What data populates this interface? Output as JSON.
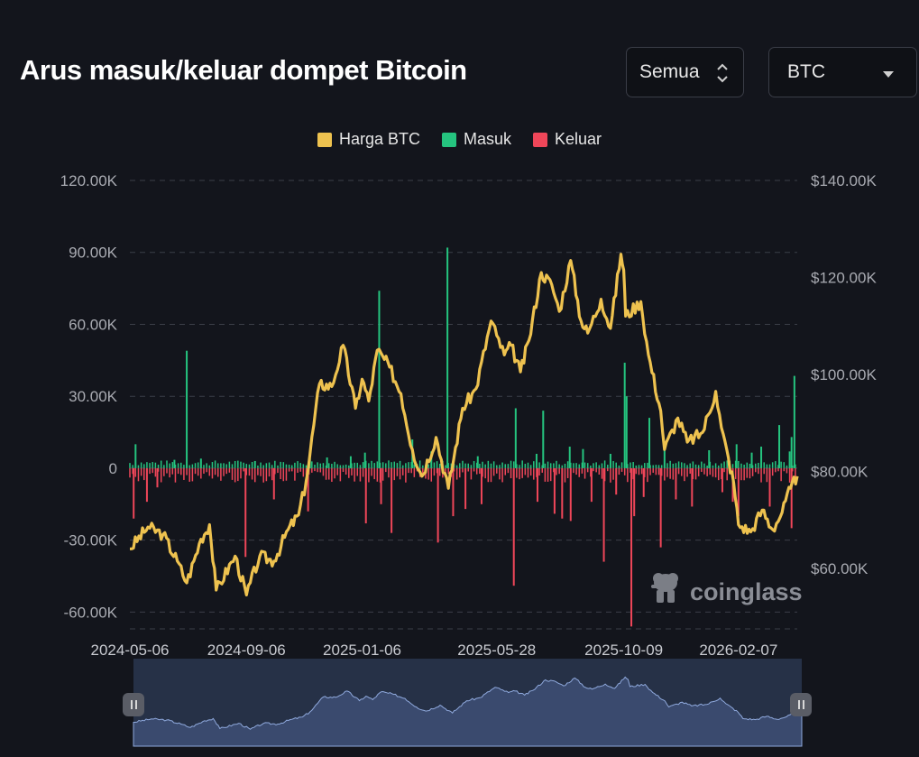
{
  "header": {
    "title": "Arus masuk/keluar dompet Bitcoin",
    "range_select": "Semua",
    "coin_select": "BTC"
  },
  "legend": [
    {
      "label": "Harga BTC",
      "color": "#eec24f"
    },
    {
      "label": "Masuk",
      "color": "#25c47f"
    },
    {
      "label": "Keluar",
      "color": "#ef4659"
    }
  ],
  "watermark": "coinglass",
  "chart_data": {
    "type": "bar",
    "title": "Arus masuk/keluar dompet Bitcoin",
    "x_ticks": [
      "2024-05-06",
      "2024-09-06",
      "2025-01-06",
      "2025-05-28",
      "2025-10-09",
      "2026-02-07"
    ],
    "x_range": [
      "2024-05-06",
      "2026-04-10"
    ],
    "y_left": {
      "ticks": [
        "120.00K",
        "90.00K",
        "60.00K",
        "30.00K",
        "0",
        "-30.00K",
        "-60.00K"
      ],
      "range": [
        -67000,
        120000
      ]
    },
    "y_right": {
      "ticks": [
        "$140.00K",
        "$120.00K",
        "$100.00K",
        "$80.00K",
        "$60.00K"
      ],
      "range": [
        47500,
        140000
      ]
    },
    "grid": true,
    "legend_position": "top-center",
    "series": [
      {
        "name": "Harga BTC",
        "type": "line",
        "axis": "right",
        "points": [
          [
            "2024-05-06",
            64000
          ],
          [
            "2024-05-25",
            68500
          ],
          [
            "2024-06-10",
            67000
          ],
          [
            "2024-06-25",
            61500
          ],
          [
            "2024-07-05",
            57000
          ],
          [
            "2024-07-20",
            66000
          ],
          [
            "2024-07-29",
            69000
          ],
          [
            "2024-08-05",
            55500
          ],
          [
            "2024-08-25",
            62500
          ],
          [
            "2024-09-06",
            54500
          ],
          [
            "2024-09-20",
            62500
          ],
          [
            "2024-10-05",
            61500
          ],
          [
            "2024-10-20",
            68000
          ],
          [
            "2024-10-31",
            71000
          ],
          [
            "2024-11-08",
            78000
          ],
          [
            "2024-11-22",
            98000
          ],
          [
            "2024-12-05",
            97500
          ],
          [
            "2024-12-17",
            106000
          ],
          [
            "2024-12-30",
            93000
          ],
          [
            "2025-01-06",
            99000
          ],
          [
            "2025-01-13",
            94500
          ],
          [
            "2025-01-22",
            105000
          ],
          [
            "2025-02-04",
            101500
          ],
          [
            "2025-02-16",
            96000
          ],
          [
            "2025-02-28",
            84500
          ],
          [
            "2025-03-10",
            79000
          ],
          [
            "2025-03-25",
            87000
          ],
          [
            "2025-04-07",
            76500
          ],
          [
            "2025-04-22",
            93000
          ],
          [
            "2025-05-06",
            97000
          ],
          [
            "2025-05-22",
            111000
          ],
          [
            "2025-05-28",
            108000
          ],
          [
            "2025-06-05",
            104000
          ],
          [
            "2025-06-12",
            106000
          ],
          [
            "2025-06-22",
            100500
          ],
          [
            "2025-07-01",
            107000
          ],
          [
            "2025-07-14",
            121000
          ],
          [
            "2025-07-25",
            118500
          ],
          [
            "2025-08-02",
            113000
          ],
          [
            "2025-08-14",
            123500
          ],
          [
            "2025-08-25",
            111000
          ],
          [
            "2025-09-01",
            108500
          ],
          [
            "2025-09-15",
            115500
          ],
          [
            "2025-09-25",
            109500
          ],
          [
            "2025-10-06",
            124800
          ],
          [
            "2025-10-09",
            121500
          ],
          [
            "2025-10-11",
            112000
          ],
          [
            "2025-10-27",
            115000
          ],
          [
            "2025-11-04",
            104000
          ],
          [
            "2025-11-17",
            92500
          ],
          [
            "2025-11-21",
            84500
          ],
          [
            "2025-12-05",
            91000
          ],
          [
            "2025-12-15",
            86000
          ],
          [
            "2025-12-31",
            88000
          ],
          [
            "2026-01-14",
            96500
          ],
          [
            "2026-01-20",
            89000
          ],
          [
            "2026-02-02",
            77500
          ],
          [
            "2026-02-07",
            69000
          ],
          [
            "2026-02-20",
            67500
          ],
          [
            "2026-03-04",
            72000
          ],
          [
            "2026-03-15",
            68000
          ],
          [
            "2026-03-25",
            71500
          ],
          [
            "2026-04-03",
            76500
          ],
          [
            "2026-04-10",
            79000
          ]
        ]
      },
      {
        "name": "Masuk",
        "type": "bar",
        "axis": "left",
        "baseline": 2200,
        "spikes": [
          [
            "2024-05-12",
            10000
          ],
          [
            "2024-06-22",
            3500
          ],
          [
            "2024-07-05",
            49000
          ],
          [
            "2024-07-20",
            4000
          ],
          [
            "2024-09-15",
            3000
          ],
          [
            "2024-11-12",
            4000
          ],
          [
            "2024-11-30",
            4500
          ],
          [
            "2024-12-25",
            5000
          ],
          [
            "2025-01-09",
            6500
          ],
          [
            "2025-01-24",
            74000
          ],
          [
            "2025-02-28",
            12000
          ],
          [
            "2025-03-20",
            7000
          ],
          [
            "2025-04-06",
            92000
          ],
          [
            "2025-05-08",
            5000
          ],
          [
            "2025-06-17",
            25000
          ],
          [
            "2025-07-09",
            6000
          ],
          [
            "2025-07-16",
            24000
          ],
          [
            "2025-08-13",
            9000
          ],
          [
            "2025-08-27",
            8000
          ],
          [
            "2025-09-25",
            6000
          ],
          [
            "2025-10-10",
            44000
          ],
          [
            "2025-10-12",
            30000
          ],
          [
            "2025-11-05",
            21000
          ],
          [
            "2025-11-21",
            8500
          ],
          [
            "2026-01-07",
            7500
          ],
          [
            "2026-02-05",
            10000
          ],
          [
            "2026-02-21",
            6500
          ],
          [
            "2026-03-03",
            9000
          ],
          [
            "2026-03-22",
            18000
          ],
          [
            "2026-04-02",
            7000
          ],
          [
            "2026-04-04",
            13000
          ],
          [
            "2026-04-07",
            38500
          ]
        ]
      },
      {
        "name": "Keluar",
        "type": "bar",
        "axis": "left",
        "baseline": -3000,
        "spikes": [
          [
            "2024-05-10",
            -21000
          ],
          [
            "2024-05-24",
            -14000
          ],
          [
            "2024-06-04",
            -8000
          ],
          [
            "2024-09-05",
            -37000
          ],
          [
            "2024-10-05",
            -13000
          ],
          [
            "2024-11-10",
            -18000
          ],
          [
            "2025-01-10",
            -23000
          ],
          [
            "2025-01-26",
            -15000
          ],
          [
            "2025-02-06",
            -27000
          ],
          [
            "2025-03-27",
            -31000
          ],
          [
            "2025-04-12",
            -20000
          ],
          [
            "2025-04-25",
            -17000
          ],
          [
            "2025-05-12",
            -15000
          ],
          [
            "2025-06-15",
            -49000
          ],
          [
            "2025-07-10",
            -14000
          ],
          [
            "2025-07-28",
            -19000
          ],
          [
            "2025-08-05",
            -21000
          ],
          [
            "2025-08-14",
            -22000
          ],
          [
            "2025-09-05",
            -14000
          ],
          [
            "2025-09-18",
            -39000
          ],
          [
            "2025-10-01",
            -11000
          ],
          [
            "2025-10-17",
            -66000
          ],
          [
            "2025-10-20",
            -20000
          ],
          [
            "2025-10-30",
            -12000
          ],
          [
            "2025-11-17",
            -33000
          ],
          [
            "2025-12-03",
            -13000
          ],
          [
            "2025-12-20",
            -16000
          ],
          [
            "2026-01-21",
            -10000
          ],
          [
            "2026-02-01",
            -14000
          ],
          [
            "2026-02-07",
            -20000
          ],
          [
            "2026-03-12",
            -16000
          ],
          [
            "2026-04-04",
            -25000
          ]
        ]
      }
    ]
  }
}
